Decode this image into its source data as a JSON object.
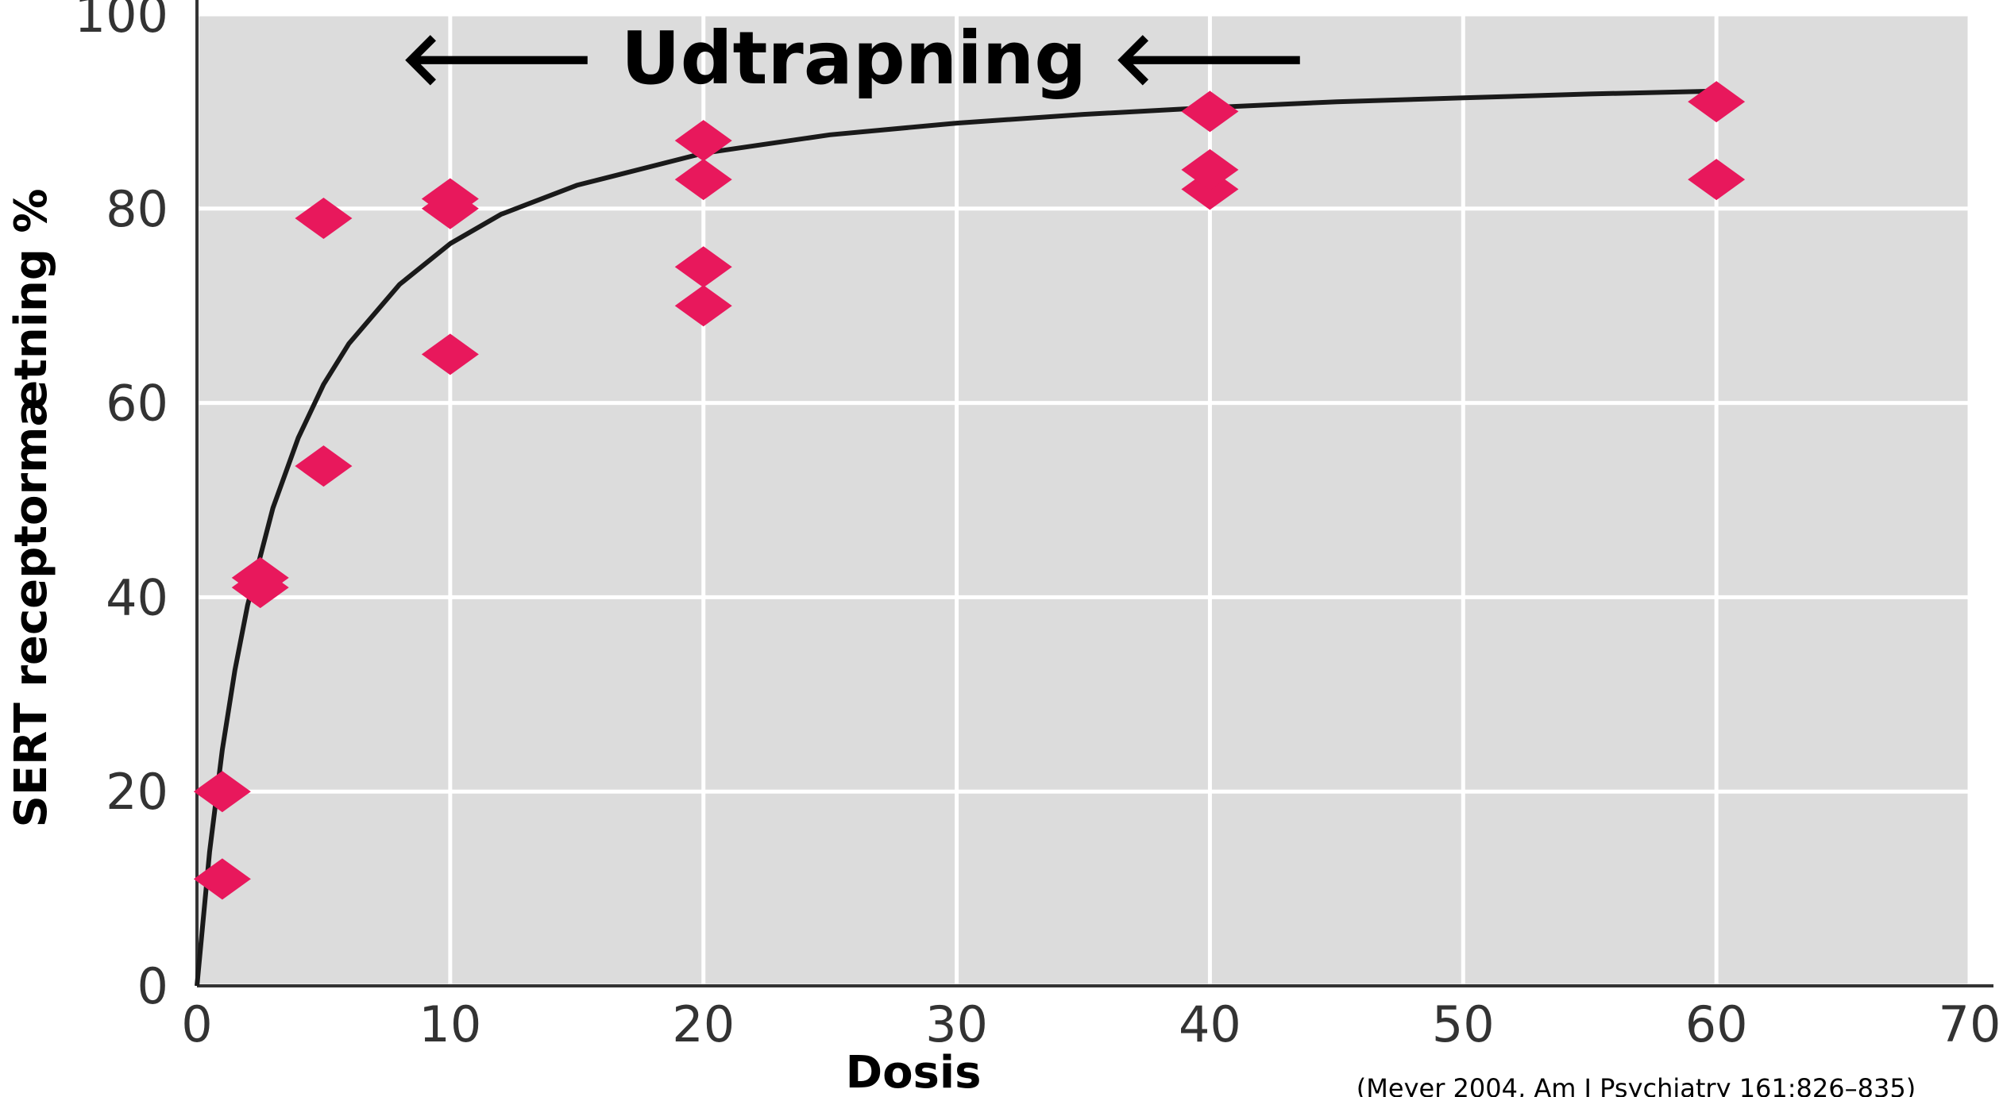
{
  "chart_data": {
    "type": "scatter",
    "title": "",
    "annotation": "🡐 Udtrapning 🡐",
    "xlabel": "Dosis",
    "ylabel": "SERT receptormætning %",
    "citation": "(Meyer 2004, Am J Psychiatry 161:826–835)",
    "xlim": [
      0,
      70
    ],
    "ylim": [
      0,
      100
    ],
    "xticks": [
      0,
      10,
      20,
      30,
      40,
      50,
      60,
      70
    ],
    "yticks": [
      0,
      20,
      40,
      60,
      80,
      100
    ],
    "grid": true,
    "legend": "none",
    "marker": "diamond",
    "colors": {
      "points": "#e8185c",
      "curve": "#1a1a1a",
      "plot_bg": "#dcdcdc",
      "grid": "#ffffff"
    },
    "points": [
      {
        "x": 1,
        "y": 11
      },
      {
        "x": 1,
        "y": 20
      },
      {
        "x": 2.5,
        "y": 41
      },
      {
        "x": 2.5,
        "y": 42
      },
      {
        "x": 5,
        "y": 53.5
      },
      {
        "x": 5,
        "y": 79
      },
      {
        "x": 10,
        "y": 65
      },
      {
        "x": 10,
        "y": 80
      },
      {
        "x": 10,
        "y": 81
      },
      {
        "x": 20,
        "y": 70
      },
      {
        "x": 20,
        "y": 74
      },
      {
        "x": 20,
        "y": 83
      },
      {
        "x": 20,
        "y": 87
      },
      {
        "x": 40,
        "y": 82
      },
      {
        "x": 40,
        "y": 84
      },
      {
        "x": 40,
        "y": 90
      },
      {
        "x": 60,
        "y": 83
      },
      {
        "x": 60,
        "y": 91
      }
    ],
    "fit_curve": {
      "name": "",
      "x": [
        0,
        0.5,
        1,
        1.5,
        2,
        3,
        4,
        5,
        6,
        8,
        10,
        12,
        15,
        20,
        25,
        30,
        35,
        40,
        45,
        50,
        55,
        60
      ],
      "y": [
        0,
        13.8,
        24.3,
        32.5,
        39.2,
        49.2,
        56.4,
        61.9,
        66.1,
        72.2,
        76.4,
        79.4,
        82.4,
        85.7,
        87.6,
        88.8,
        89.7,
        90.4,
        91.0,
        91.4,
        91.8,
        92.1
      ]
    }
  }
}
